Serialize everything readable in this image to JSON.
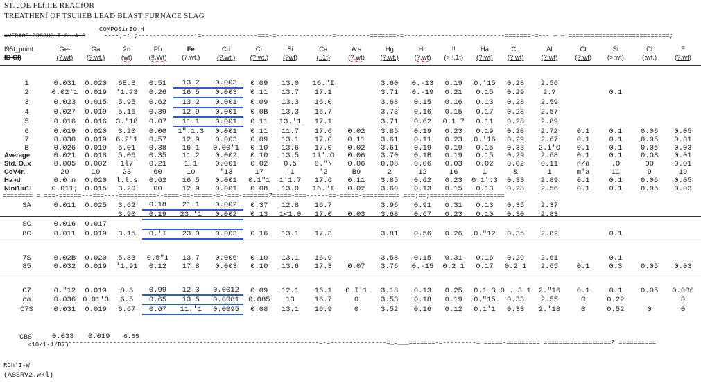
{
  "doc": {
    "line1": "ST. JOE FLfllIE REACfOR",
    "line2": "TREATHENf OF TSUllEB LEAD BLAST FURNACE SLAG",
    "composition_label": "COMPOSirIO H",
    "avg_label": "AVERAGE PRODUC-T SL-A-G",
    "dash_top": "----;-;:;---------------:=---------------===-=---------------=---------=======-=---------------------------=======-=--- — — ===========================;",
    "dash_avg": "======== = ===-======---===----==========--====-==-=====-=--===-=======Z=====-===------==-=====-==========  ===;==;====================",
    "dash_bottom": "----------------------------------------------------------------------=-=---------------=_=___=======-=---------= =====-========= ==================Z =========="
  },
  "headers": {
    "row1": [
      "f95t_point.",
      "Ge-",
      "Ga",
      "2n",
      "Pb",
      "Fe",
      "Cd",
      "Cr",
      "Si",
      "Ca",
      "A:s",
      "Hg",
      "Hn",
      "!!",
      "Ha",
      "Cu",
      "Al",
      "Ct",
      "St",
      "Cl",
      "F"
    ],
    "row2": [
      "ID Cl)",
      "(7.wt)",
      "(?.wt.)",
      "(wt)",
      "(!!.Wt)",
      "(7.wt.)",
      "(?.wt.)",
      "(?.wt.)",
      "(?wt)",
      "(.,1t)",
      "(?.wt)",
      "(?.wt.)",
      "(?.wt)",
      "(>!!,1t)",
      "(?.wt)",
      "(?.wt)",
      "(?.wt)",
      "(?.wt)",
      "(>:wt)",
      "(:wt.)",
      "(?.wt)"
    ]
  },
  "block1": [
    [
      "1",
      "0.031",
      "0.020",
      "6E.B",
      "0.51",
      "13.2",
      "0.003",
      "0.09",
      "13.0",
      "16.\"I",
      "",
      "3.60",
      "0.-13",
      "0.19",
      "0.'15",
      "0.28",
      "2.56",
      "",
      "",
      "",
      ""
    ],
    [
      "2",
      "0.02'1",
      "0.019",
      "'1.?3",
      "0.26",
      "16.5",
      "0.003",
      "0.11",
      "13.7",
      "17.1",
      "",
      "3.71",
      "0.-19",
      "0.21",
      "0.15",
      "0.29",
      "2.?",
      "",
      "0.1",
      "",
      ""
    ],
    [
      "3",
      "0.023",
      "0.015",
      "5.95",
      "0.62",
      "13.2",
      "0.001",
      "0.09",
      "13.3",
      "16.0",
      "",
      "3.68",
      "0.15",
      "0.16",
      "0.13",
      "0.28",
      "2.59",
      "",
      "",
      "",
      ""
    ],
    [
      "4",
      "0.027",
      "0.019",
      "5.16",
      "0.39",
      "12.9",
      "0.001",
      "0.0B",
      "13.3",
      "16.7",
      "",
      "3.73",
      "0.16",
      "0.15",
      "0.17",
      "0.28",
      "2.57",
      "",
      "",
      "",
      ""
    ],
    [
      "5",
      "0.016",
      "0.016",
      "3.'18",
      "0.07",
      "11.1",
      "0.001",
      "0.11",
      "13.'1",
      "17.1",
      "",
      "3.71",
      "0.62",
      "0.1'7",
      "0.11",
      "0.28",
      "2.89",
      "",
      "",
      "",
      ""
    ],
    [
      "6",
      "0.019",
      "0.020",
      "3.20",
      "0.00",
      "1\".1.3",
      "0.001",
      "0.11",
      "11.7",
      "17.6",
      "0.02",
      "3.85",
      "0.19",
      "0.23",
      "0.19",
      "0.28",
      "2.72",
      "0.1",
      "0.1",
      "0.06",
      "0.05"
    ],
    [
      "7",
      "0.030",
      "0.019",
      "6.2\"1",
      "0.57",
      "12.9",
      "0.003",
      "0.09",
      "13.1",
      "17.0",
      "0.11",
      "3.61",
      "0.11",
      "0.23",
      "0.'16",
      "0.29",
      "2.67",
      "0.1",
      "0.1",
      "0.05",
      "0.01"
    ],
    [
      "B",
      "0.026",
      "0.019",
      "5.01",
      "0.38",
      "16.1",
      "0.00'1",
      "0.10",
      "13.6",
      "17.0",
      "0.02",
      "3.61",
      "0.19",
      "0.19",
      "0.15",
      "0.33",
      "2.i'O",
      "0.1",
      "0.1",
      "0.05",
      "0.03"
    ]
  ],
  "stats": [
    [
      "Average",
      "0.021",
      "0.018",
      "5.06",
      "0.35",
      "11.2",
      "0.002",
      "0.10",
      "13.5",
      "1i'.O",
      "0.06",
      "3.70",
      "0.1B",
      "0.19",
      "0.15",
      "0.29",
      "2.68",
      "0.1",
      "0.1",
      "0.OS",
      "0.01"
    ],
    [
      "Std. O..x",
      "0.005",
      "0.002",
      "1l7",
      "0.21",
      "1.1",
      "0.001",
      "0.02",
      "0.5",
      "0.\"\\",
      "0.06",
      "0.08",
      "0.06",
      "0.03",
      "0.02",
      "0.02",
      "0.11",
      "n/a",
      ".O",
      "OO",
      "0.01"
    ],
    [
      "CoV4r.",
      "20",
      "10",
      "23",
      "60",
      "10",
      "'13",
      "17",
      "'1",
      "'2",
      "B9",
      "2",
      "12",
      "16",
      "1",
      "&",
      "1",
      "m'a",
      "11",
      "9",
      "19"
    ],
    [
      "Ha>d",
      "0.0:n",
      "0.020",
      "l.l.s",
      "0.62",
      "16.5",
      "0.001",
      "0.1\"1",
      "1'1.7",
      "17.6",
      "0.11",
      "3.85",
      "0.62",
      "0.23",
      "0.1':3",
      "0.33",
      "2.89",
      "0.1",
      "0.1",
      "0.06",
      "0.05"
    ],
    [
      "Nini1lu1l",
      "0.011;",
      "0.015",
      "3.20",
      "00",
      "12.9",
      "0.001",
      "0.08",
      "13.0",
      "16.\"I",
      "0.02",
      "3.60",
      "0.13",
      "0.15",
      "0.13",
      "0.28",
      "2.56",
      "0.1",
      "0.1",
      "0.05",
      "0.03"
    ]
  ],
  "block2": [
    [
      "SA",
      "0.011",
      "0.025",
      "3.62",
      "0.18",
      "21.1",
      "0.002",
      "0.37",
      "12.8",
      "16.7",
      "",
      "3.96",
      "0.91",
      "0.31",
      "0.13",
      "0.35",
      "2.37",
      "",
      "",
      "",
      ""
    ],
    [
      "",
      "",
      "",
      "3.90",
      "0.19",
      "23.'1",
      "0.002",
      "0.13",
      "1<1.0",
      "17.0",
      "0.03",
      "3.68",
      "0.67",
      "0.23",
      "0.10",
      "0.30",
      "2.83",
      "",
      "",
      "",
      ""
    ],
    [
      "SC",
      "0.016",
      "0.017",
      "",
      "",
      "",
      "",
      "",
      "",
      "",
      "",
      "",
      "",
      "",
      "",
      "",
      "",
      "",
      "",
      "",
      ""
    ],
    [
      "8C",
      "0.011",
      "0.019",
      "3.15",
      "O.'I",
      "23.0",
      "0.003",
      "0.16",
      "13.1",
      "17.3",
      "",
      "3.81",
      "0.56",
      "0.26",
      "0.\"12",
      "0.35",
      "2.82",
      "",
      "0.1",
      "",
      ""
    ]
  ],
  "block3": [
    [
      "7S",
      "0.02B",
      "0.020",
      "5.83",
      "0.5\"1",
      "13.7",
      "0.006",
      "0.10",
      "13.1",
      "16.9",
      "",
      "3.58",
      "0.15",
      "0.31",
      "0.16",
      "0.29",
      "2.61",
      "",
      "0.1",
      "",
      ""
    ],
    [
      "85",
      "0.032",
      "0.019",
      "'1.91",
      "0.12",
      "17.8",
      "0.003",
      "0.10",
      "13.6",
      "17.3",
      "0.07",
      "3.76",
      "0.-15",
      "0.2 1",
      "0.17",
      "0.2 1",
      "2.65",
      "0.1",
      "0.3",
      "0.05",
      "0.03"
    ]
  ],
  "block4": [
    [
      "C7",
      "0.\"12",
      "0.019",
      "8.6",
      "0.99",
      "12.3",
      "0.0012",
      "0.09",
      "12.1",
      "16.1",
      "O.I'1",
      "3.18",
      "0.13",
      "0.25",
      "0.1 3",
      "0 . 3 1",
      "2.\"16",
      "0.1",
      "0.1",
      "0.05",
      "0.036"
    ],
    [
      "ca",
      "0.036",
      "0.01'3",
      "6.5",
      "0.65",
      "13.5",
      "0.0081",
      "0.085",
      "13",
      "16.7",
      "0",
      "3.53",
      "0.18",
      "0.19",
      "0.\"15",
      "0.33",
      "2.55",
      "0",
      "0.22",
      "",
      "0"
    ],
    [
      "C7S",
      "0.031",
      "0.019",
      "6.67",
      "0.67",
      "11.'1",
      "0.0095",
      "0.08",
      "13.1",
      "16.9",
      "0",
      "3.52",
      "0.16",
      "0.12",
      "0.1'1",
      "0.33",
      "2.'18",
      "0",
      "0.52",
      "0",
      "0"
    ]
  ],
  "cbs": [
    "CBS",
    "0.033",
    "0.019",
    "6.55"
  ],
  "footer": {
    "date": "<10/1-1/B7)",
    "rch": "RCh'I-W",
    "file": "(ASSRV2.wkl)"
  }
}
